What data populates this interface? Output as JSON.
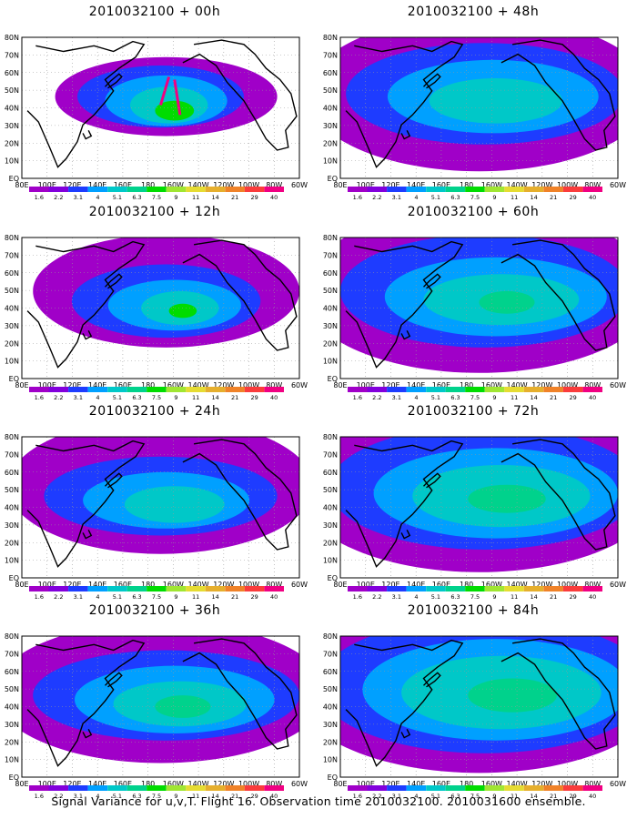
{
  "figure": {
    "caption": "Signal Variance for u,v,T. Flight 16. Observation time 2010032100. 2010031600 ensemble."
  },
  "map": {
    "lat_labels": [
      "80N",
      "70N",
      "60N",
      "50N",
      "40N",
      "30N",
      "20N",
      "10N",
      "EQ"
    ],
    "lon_labels": [
      "80E",
      "100E",
      "120E",
      "140E",
      "160E",
      "180",
      "160W",
      "140W",
      "120W",
      "100W",
      "80W",
      "60W"
    ]
  },
  "colorbar": {
    "labels": [
      "1.6",
      "2.2",
      "3.1",
      "4",
      "5.1",
      "6.3",
      "7.5",
      "9",
      "11",
      "14",
      "21",
      "29",
      "40"
    ],
    "colors": [
      "#a000c8",
      "#8200dc",
      "#1e3cff",
      "#00a0ff",
      "#00c8c8",
      "#00d28c",
      "#00dc00",
      "#a0e632",
      "#e6dc32",
      "#e6af2d",
      "#f08228",
      "#fa3c3c",
      "#f00082"
    ]
  },
  "panels": [
    {
      "title": "2010032100 + 00h",
      "col": 0,
      "row": 0,
      "level": 0
    },
    {
      "title": "2010032100 + 12h",
      "col": 0,
      "row": 1,
      "level": 1
    },
    {
      "title": "2010032100 + 24h",
      "col": 0,
      "row": 2,
      "level": 2
    },
    {
      "title": "2010032100 + 36h",
      "col": 0,
      "row": 3,
      "level": 3
    },
    {
      "title": "2010032100 + 48h",
      "col": 1,
      "row": 0,
      "level": 4
    },
    {
      "title": "2010032100 + 60h",
      "col": 1,
      "row": 1,
      "level": 5
    },
    {
      "title": "2010032100 + 72h",
      "col": 1,
      "row": 2,
      "level": 6
    },
    {
      "title": "2010032100 + 84h",
      "col": 1,
      "row": 3,
      "level": 7
    }
  ]
}
